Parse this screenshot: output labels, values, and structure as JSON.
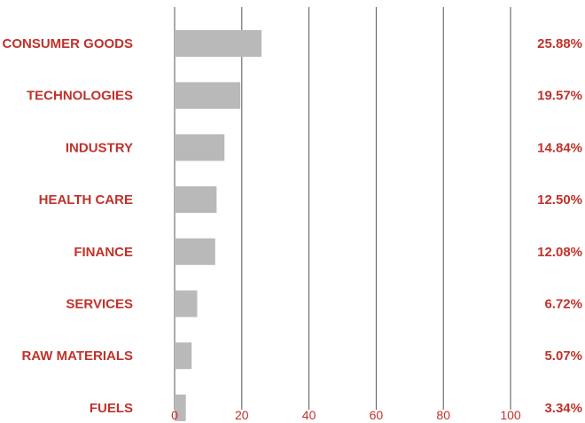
{
  "colors": {
    "bar": "#b9b9b9",
    "label": "#c0322b",
    "gridline": "#555555"
  },
  "chart_data": {
    "type": "bar",
    "orientation": "horizontal",
    "title": "",
    "xlabel": "",
    "ylabel": "",
    "categories": [
      "CONSUMER GOODS",
      "TECHNOLOGIES",
      "INDUSTRY",
      "HEALTH CARE",
      "FINANCE",
      "SERVICES",
      "RAW MATERIALS",
      "FUELS"
    ],
    "values": [
      25.88,
      19.57,
      14.84,
      12.5,
      12.08,
      6.72,
      5.07,
      3.34
    ],
    "value_labels": [
      "25.88%",
      "19.57%",
      "14.84%",
      "12.50%",
      "12.08%",
      "6.72%",
      "5.07%",
      "3.34%"
    ],
    "xlim": [
      0,
      100
    ],
    "x_ticks": [
      0,
      20,
      40,
      60,
      80,
      100
    ],
    "x_tick_labels": [
      "0",
      "20",
      "40",
      "60",
      "80",
      "100"
    ],
    "grid": true,
    "legend": "none"
  }
}
